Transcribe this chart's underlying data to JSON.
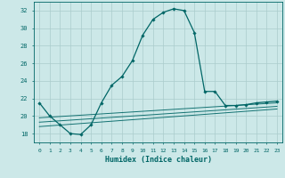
{
  "xlabel": "Humidex (Indice chaleur)",
  "ylabel": "",
  "background_color": "#cce8e8",
  "grid_color": "#aacccc",
  "line_color": "#006666",
  "xlim": [
    -0.5,
    23.5
  ],
  "ylim": [
    17.0,
    33.0
  ],
  "yticks": [
    18,
    20,
    22,
    24,
    26,
    28,
    30,
    32
  ],
  "xticks": [
    0,
    1,
    2,
    3,
    4,
    5,
    6,
    7,
    8,
    9,
    10,
    11,
    12,
    13,
    14,
    15,
    16,
    17,
    18,
    19,
    20,
    21,
    22,
    23
  ],
  "main_line": {
    "x": [
      0,
      1,
      2,
      3,
      4,
      5,
      6,
      7,
      8,
      9,
      10,
      11,
      12,
      13,
      14,
      15,
      16,
      17,
      18,
      19,
      20,
      21,
      22,
      23
    ],
    "y": [
      21.5,
      20.0,
      19.0,
      18.0,
      17.9,
      19.0,
      21.5,
      23.5,
      24.5,
      26.3,
      29.2,
      31.0,
      31.8,
      32.2,
      32.0,
      29.5,
      22.8,
      22.8,
      21.2,
      21.2,
      21.3,
      21.5,
      21.6,
      21.7
    ]
  },
  "flat_lines": [
    {
      "x": [
        0,
        23
      ],
      "y": [
        18.8,
        20.8
      ]
    },
    {
      "x": [
        0,
        23
      ],
      "y": [
        19.3,
        21.1
      ]
    },
    {
      "x": [
        0,
        23
      ],
      "y": [
        19.8,
        21.5
      ]
    }
  ]
}
